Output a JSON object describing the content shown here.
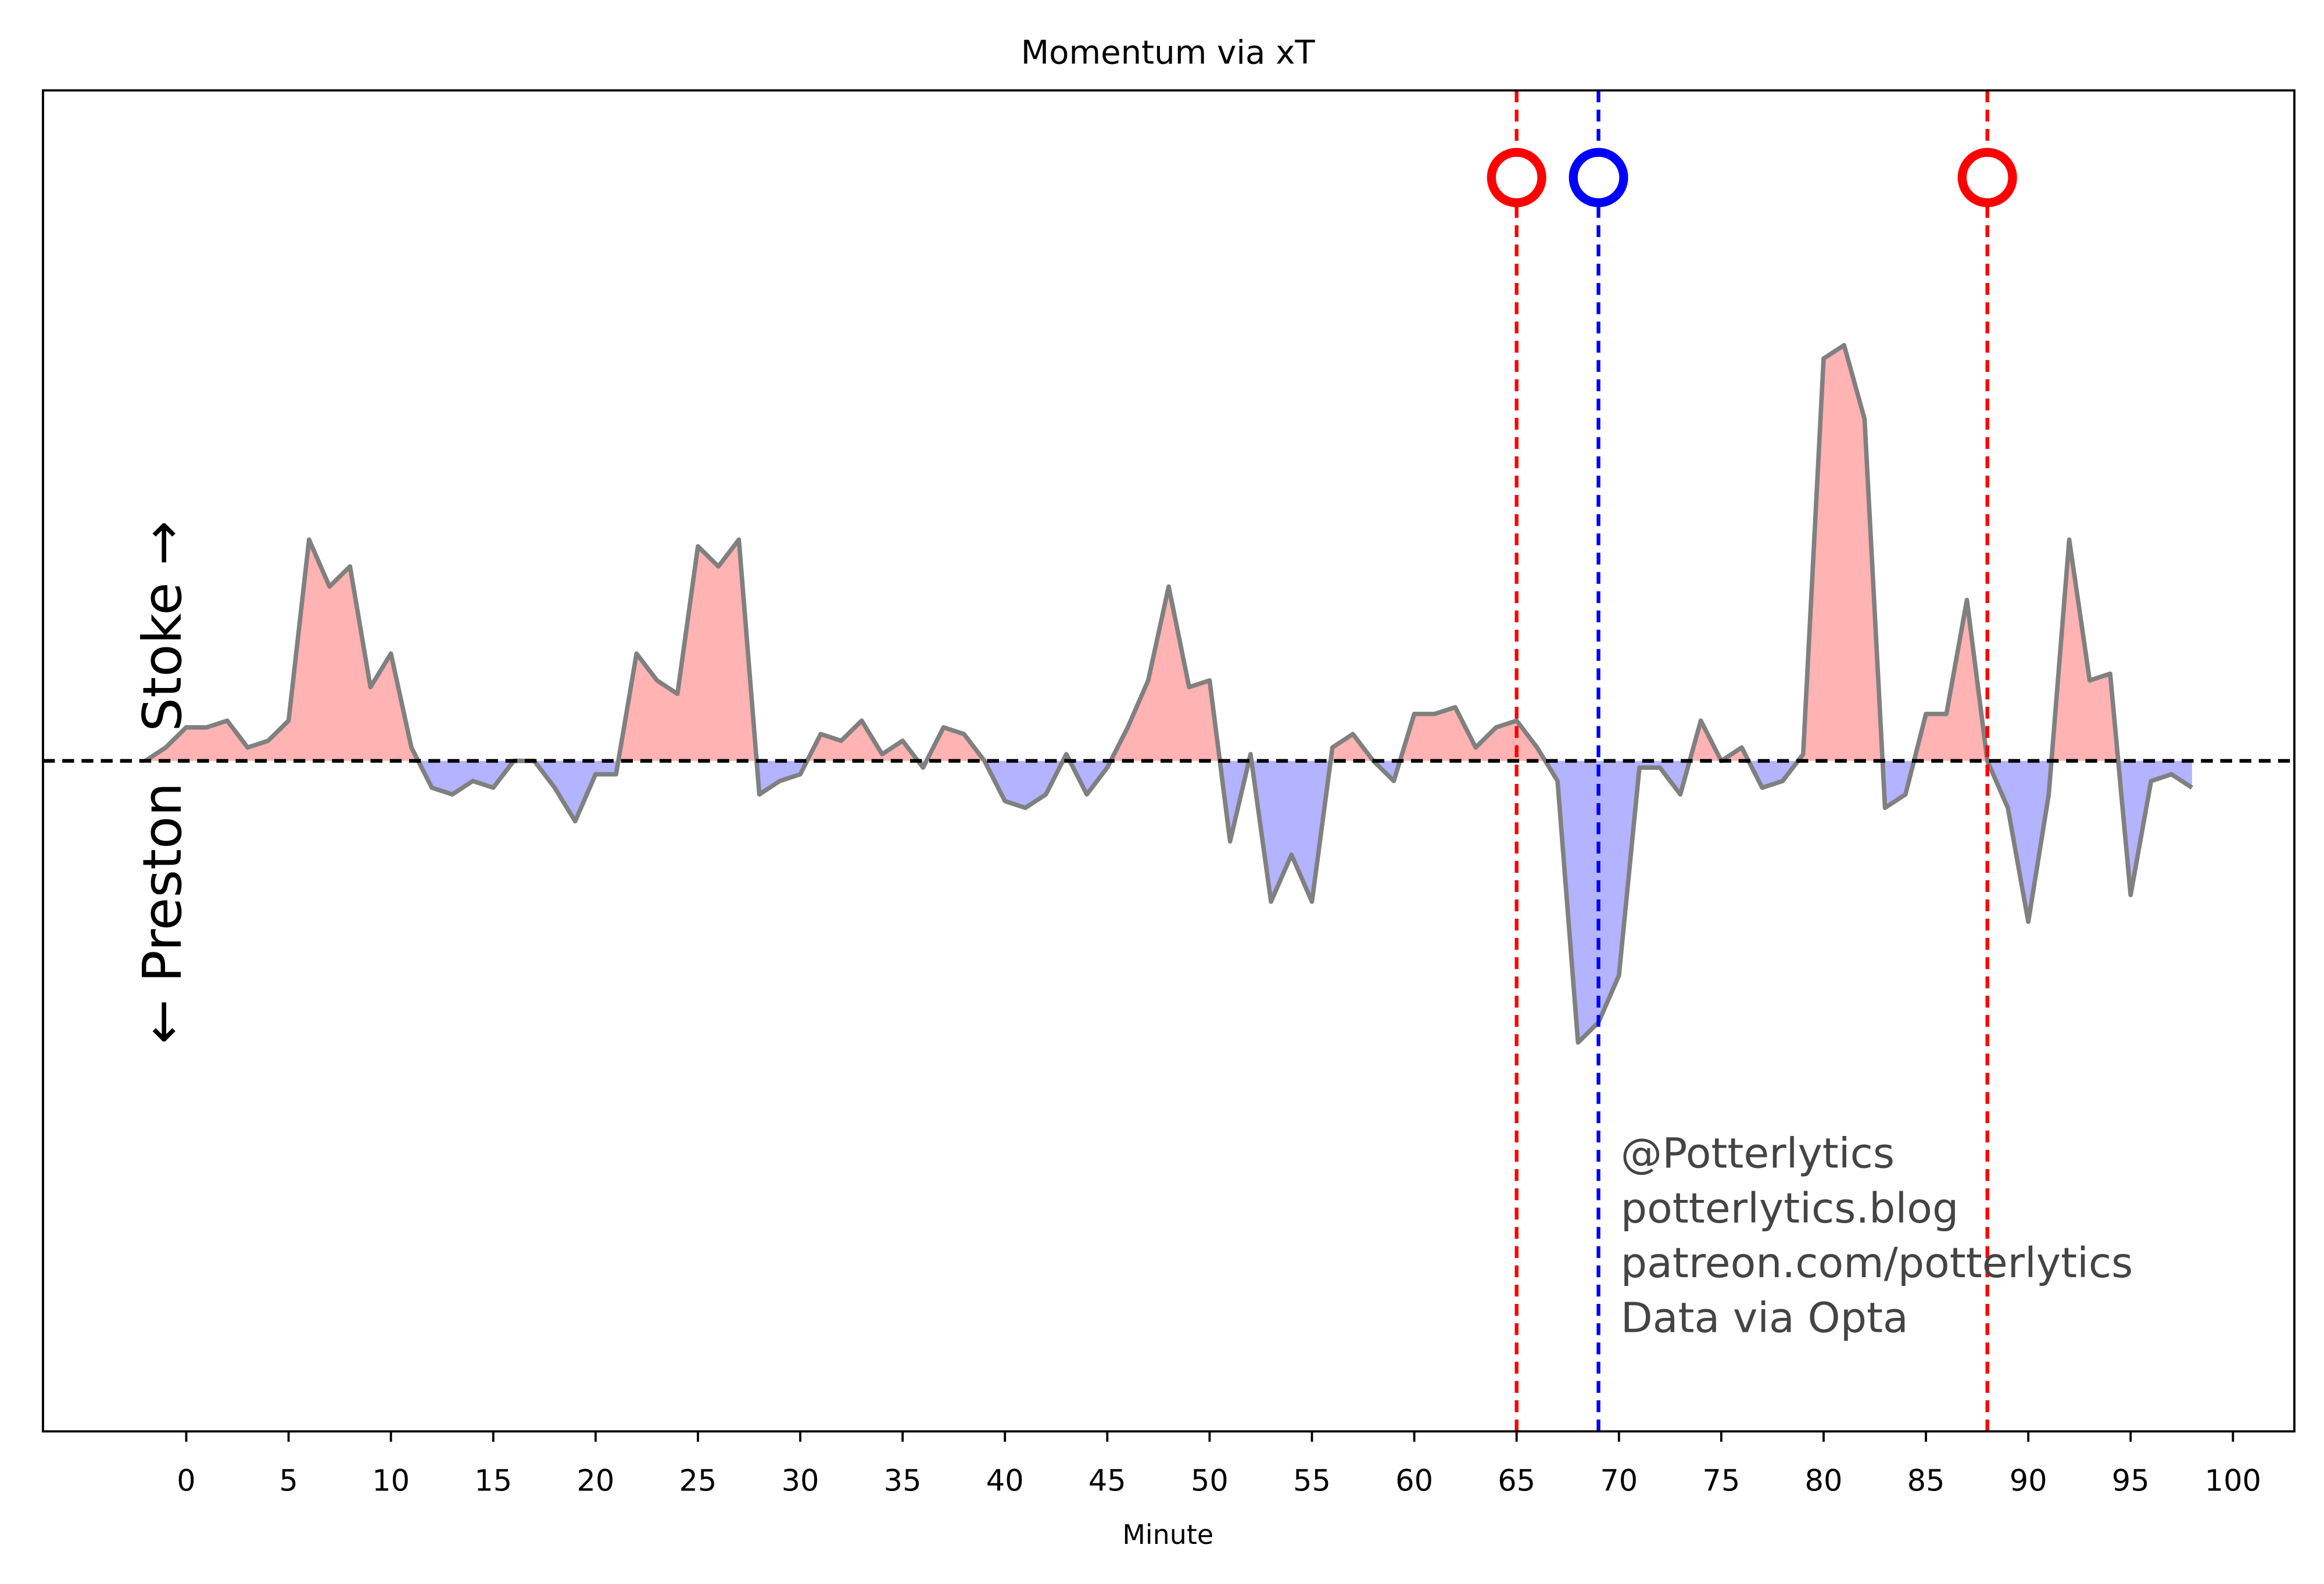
{
  "chart_data": {
    "type": "line",
    "title": "Momentum via xT",
    "xlabel": "Minute",
    "ylabel": "← Preston   Stoke →",
    "x": [
      -2,
      -1,
      0,
      1,
      2,
      3,
      4,
      5,
      6,
      7,
      8,
      9,
      10,
      11,
      12,
      13,
      14,
      15,
      16,
      17,
      18,
      19,
      20,
      21,
      22,
      23,
      24,
      25,
      26,
      27,
      28,
      29,
      30,
      31,
      32,
      33,
      34,
      35,
      36,
      37,
      38,
      39,
      40,
      41,
      42,
      43,
      44,
      45,
      46,
      47,
      48,
      49,
      50,
      51,
      52,
      53,
      54,
      55,
      56,
      57,
      58,
      59,
      60,
      61,
      62,
      63,
      64,
      65,
      66,
      67,
      68,
      69,
      70,
      71,
      72,
      73,
      74,
      75,
      76,
      77,
      78,
      79,
      80,
      81,
      82,
      83,
      84,
      85,
      86,
      87,
      88,
      89,
      90,
      91,
      92,
      93,
      94,
      95,
      96,
      97,
      98
    ],
    "series": [
      {
        "color": "#808080",
        "positive_color": "#ffb3b3",
        "negative_color": "#b3b3ff",
        "values": [
          0,
          0.02,
          0.05,
          0.05,
          0.06,
          0.02,
          0.03,
          0.06,
          0.33,
          0.26,
          0.29,
          0.11,
          0.16,
          0.02,
          -0.04,
          -0.05,
          -0.03,
          -0.04,
          0,
          0,
          -0.04,
          -0.09,
          -0.02,
          -0.02,
          0.16,
          0.12,
          0.1,
          0.32,
          0.29,
          0.33,
          -0.05,
          -0.03,
          -0.02,
          0.04,
          0.03,
          0.06,
          0.01,
          0.03,
          -0.01,
          0.05,
          0.04,
          0,
          -0.06,
          -0.07,
          -0.05,
          0.01,
          -0.05,
          -0.01,
          0.05,
          0.12,
          0.26,
          0.11,
          0.12,
          -0.12,
          0.01,
          -0.21,
          -0.14,
          -0.21,
          0.02,
          0.04,
          0,
          -0.03,
          0.07,
          0.07,
          0.08,
          0.02,
          0.05,
          0.06,
          0.02,
          -0.03,
          -0.42,
          -0.39,
          -0.32,
          -0.01,
          -0.01,
          -0.05,
          0.06,
          0,
          0.02,
          -0.04,
          -0.03,
          0.01,
          0.6,
          0.62,
          0.51,
          -0.07,
          -0.05,
          0.07,
          0.07,
          0.24,
          0,
          -0.07,
          -0.24,
          -0.05,
          0.33,
          0.12,
          0.13,
          -0.2,
          -0.03,
          -0.02,
          -0.04
        ]
      }
    ],
    "goals": [
      {
        "minute": 65,
        "color": "#ff0000"
      },
      {
        "minute": 69,
        "color": "#0000ff"
      },
      {
        "minute": 88,
        "color": "#ff0000"
      }
    ],
    "goal_marker_y": 0.87,
    "annotation": [
      "@Potterlytics",
      "potterlytics.blog",
      "patreon.com/potterlytics",
      "Data via Opta"
    ],
    "xlim": [
      -7,
      103
    ],
    "ylim": [
      -1,
      1
    ],
    "xticks": [
      0,
      5,
      10,
      15,
      20,
      25,
      30,
      35,
      40,
      45,
      50,
      55,
      60,
      65,
      70,
      75,
      80,
      85,
      90,
      95,
      100
    ]
  }
}
